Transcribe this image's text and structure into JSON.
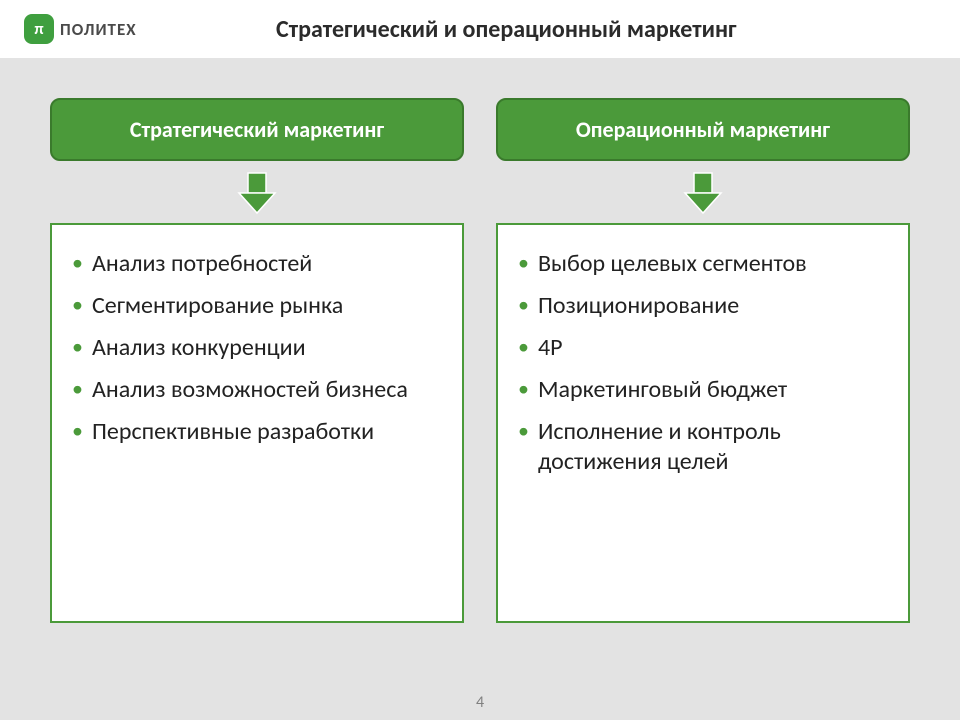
{
  "colors": {
    "brand_green": "#3f9f3f",
    "header_box_green": "#4b9a3a",
    "header_box_border": "#3a7a2c",
    "header_box_text": "#ffffff",
    "list_border": "#4b9a3a",
    "bullet": "#4b9a3a",
    "gray_band": "#e3e3e3",
    "bg_lower": "#e3e3e3",
    "title_text": "#2b2b2b",
    "logo_text": "#4a4a4a",
    "arrow_fill": "#4b9a3a",
    "arrow_stroke": "#ffffff"
  },
  "logo": {
    "mark": "π",
    "text": "ПОЛИТЕХ"
  },
  "title": "Стратегический и операционный маркетинг",
  "left": {
    "header": "Стратегический маркетинг",
    "items": [
      "Анализ потребностей",
      "Сегментирование рынка",
      "Анализ конкуренции",
      "Анализ возможностей бизнеса",
      "Перспективные разработки"
    ]
  },
  "right": {
    "header": "Операционный маркетинг",
    "items": [
      "Выбор целевых сегментов",
      "Позиционирование",
      "4Р",
      "Маркетинговый бюджет",
      "Исполнение и контроль достижения целей"
    ]
  },
  "page_number": "4",
  "layout": {
    "list_box_border_width": 2,
    "header_box_border_width": 2,
    "arrow_w": 44,
    "arrow_h": 44
  }
}
